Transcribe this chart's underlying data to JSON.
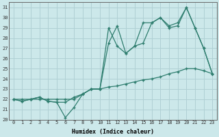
{
  "xlabel": "Humidex (Indice chaleur)",
  "xlim": [
    -0.5,
    23.5
  ],
  "ylim": [
    20,
    31.5
  ],
  "yticks": [
    20,
    21,
    22,
    23,
    24,
    25,
    26,
    27,
    28,
    29,
    30,
    31
  ],
  "xticks": [
    0,
    1,
    2,
    3,
    4,
    5,
    6,
    7,
    8,
    9,
    10,
    11,
    12,
    13,
    14,
    15,
    16,
    17,
    18,
    19,
    20,
    21,
    22,
    23
  ],
  "bg_color": "#cce8ea",
  "grid_color": "#b0d0d4",
  "line_color": "#2e7d6e",
  "line1": [
    22,
    21.8,
    22,
    22.2,
    21.8,
    21.7,
    21.7,
    22.2,
    22.5,
    23.0,
    23.0,
    27.5,
    29.2,
    26.5,
    27.2,
    27.5,
    29.5,
    30.0,
    29.0,
    29.2,
    31.0,
    29.0,
    27.0,
    24.5
  ],
  "line2": [
    22,
    21.8,
    22,
    22.2,
    21.8,
    21.7,
    20.2,
    21.2,
    22.5,
    23.0,
    23.0,
    29.0,
    27.2,
    26.5,
    27.2,
    29.5,
    29.5,
    30.0,
    29.2,
    29.5,
    31.0,
    29.0,
    27.0,
    24.5
  ],
  "line3": [
    22,
    22,
    22,
    22,
    22,
    22,
    22,
    22,
    22.5,
    23.0,
    23.0,
    23.2,
    23.3,
    23.5,
    23.7,
    23.9,
    24.0,
    24.2,
    24.5,
    24.7,
    25.0,
    25.0,
    24.8,
    24.5
  ]
}
